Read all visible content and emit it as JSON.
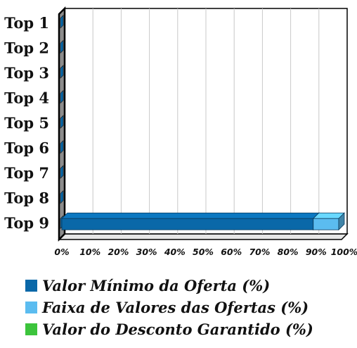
{
  "chart_data": {
    "type": "bar",
    "orientation": "horizontal",
    "stacked": true,
    "three_d": true,
    "categories": [
      "Top 1",
      "Top 2",
      "Top 3",
      "Top 4",
      "Top 5",
      "Top 6",
      "Top 7",
      "Top 8",
      "Top 9"
    ],
    "series": [
      {
        "name": "Valor Mínimo da Oferta (%)",
        "color": "#0a68a8",
        "values": [
          0,
          0,
          0,
          0,
          0,
          0,
          0,
          0,
          89
        ]
      },
      {
        "name": "Faixa de Valores das Ofertas (%)",
        "color": "#5bbcf0",
        "values": [
          0,
          0,
          0,
          0,
          0,
          0,
          0,
          0,
          9
        ]
      },
      {
        "name": "Valor do Desconto Garantido (%)",
        "color": "#3cc43c",
        "values": [
          0,
          0,
          0,
          0,
          0,
          0,
          0,
          0,
          0
        ]
      }
    ],
    "x_ticks": [
      "0%",
      "10%",
      "20%",
      "30%",
      "40%",
      "50%",
      "60%",
      "70%",
      "80%",
      "90%",
      "100%"
    ],
    "xlim": [
      0,
      100
    ],
    "grid": "vertical",
    "legend_position": "bottom"
  }
}
